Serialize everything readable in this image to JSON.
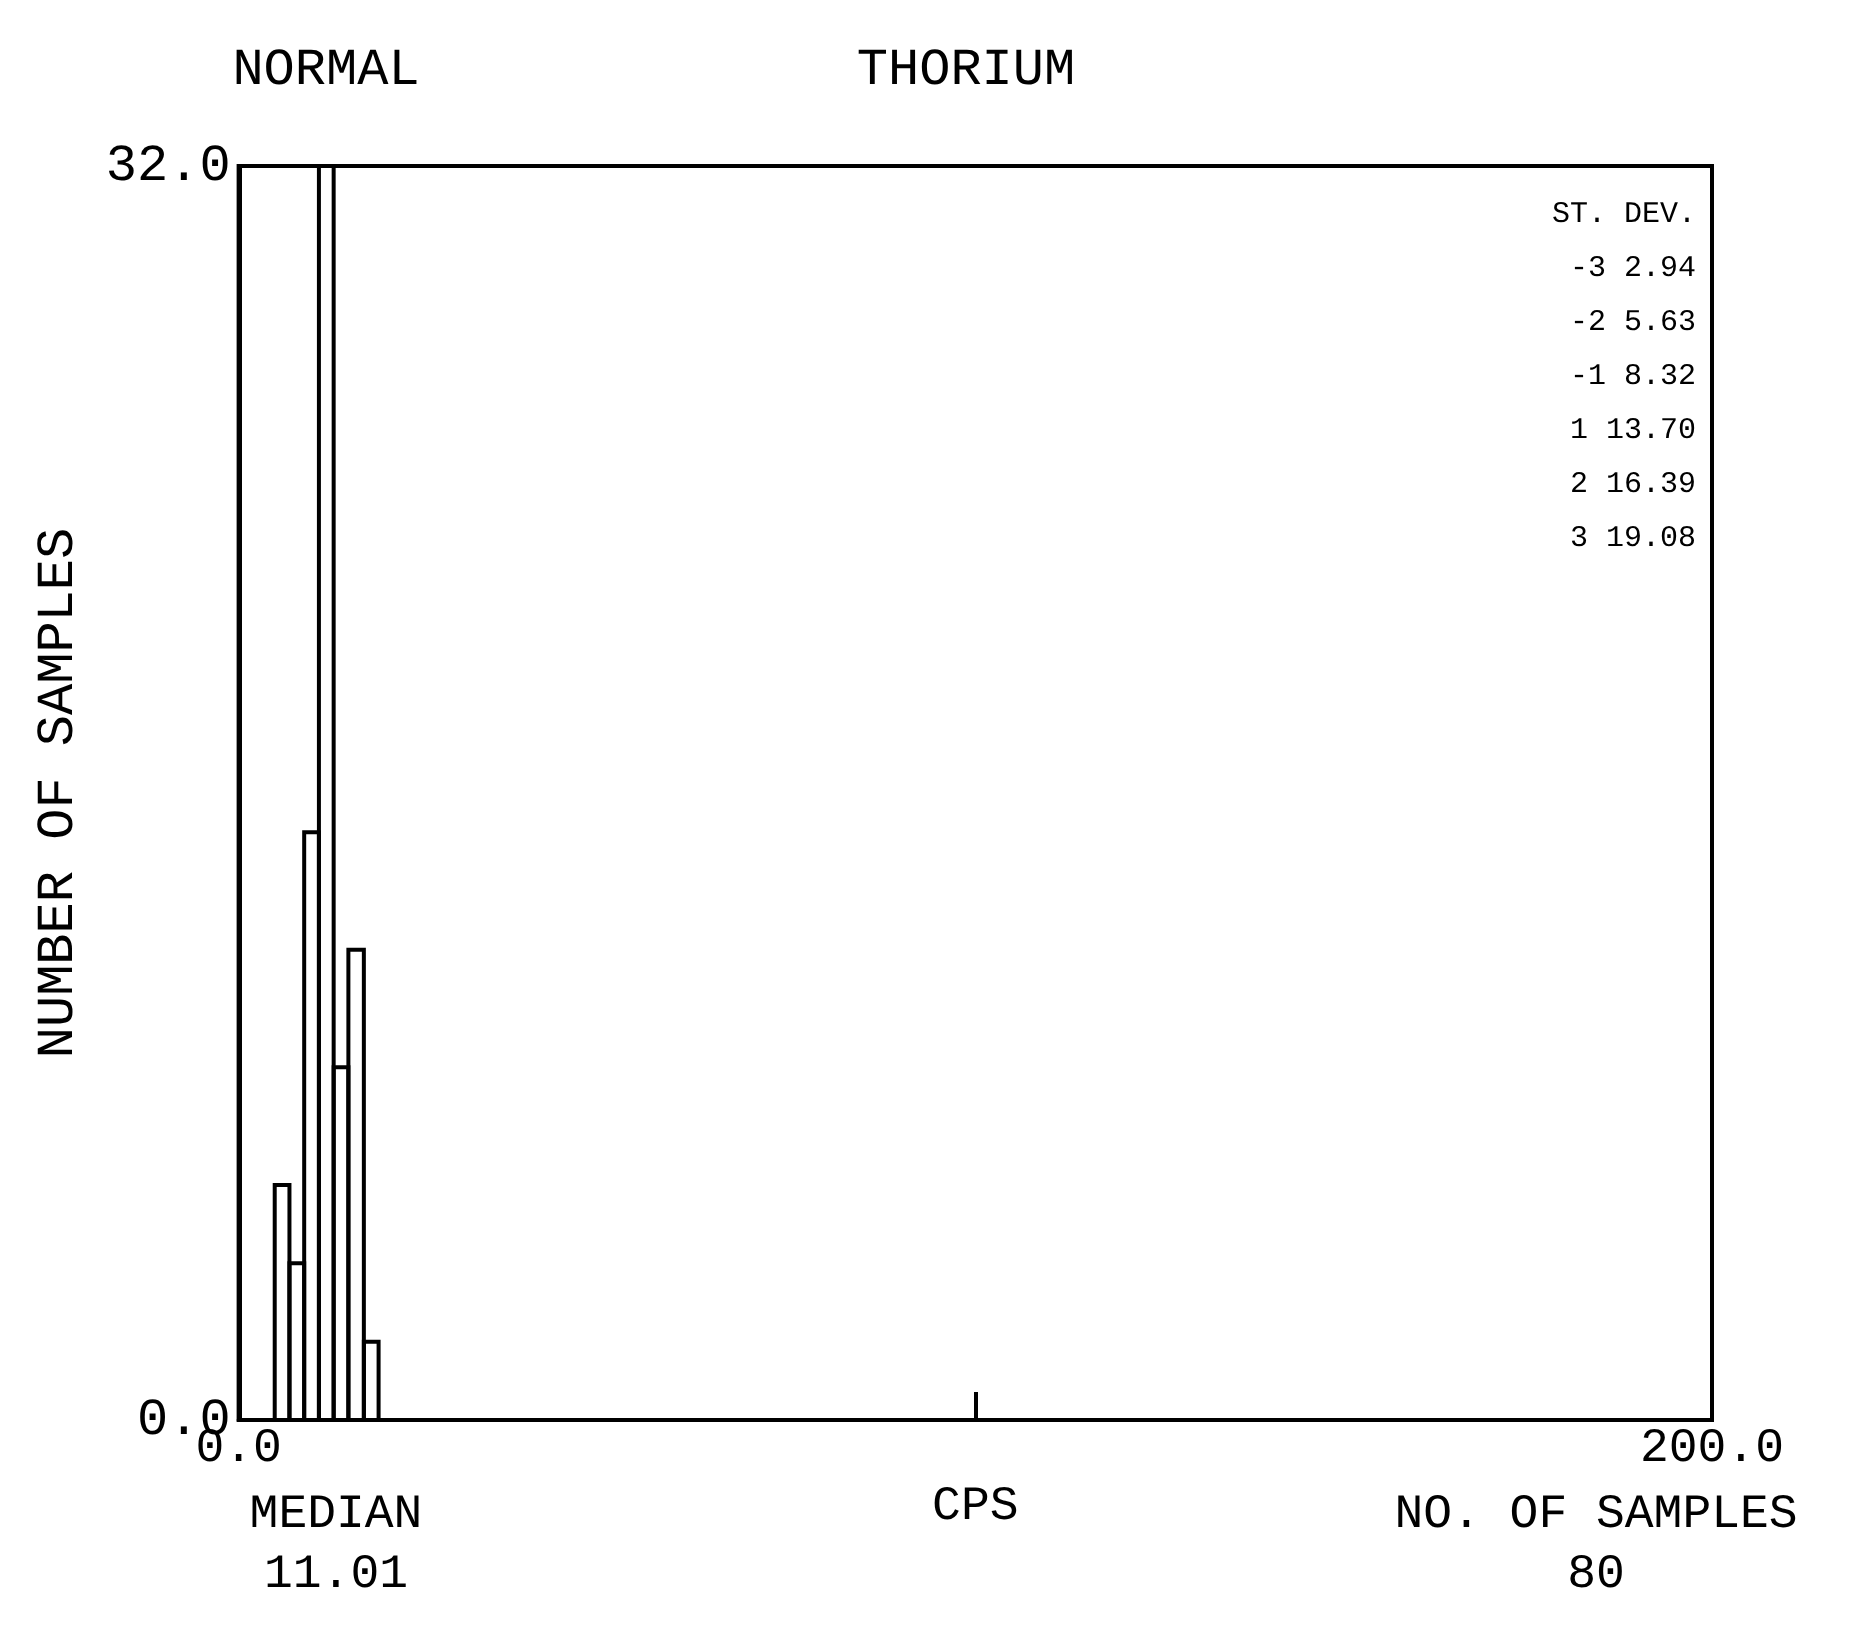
{
  "chart_data": {
    "type": "histogram",
    "title": "THORIUM",
    "subtitle": "NORMAL",
    "xlabel": "CPS",
    "ylabel": "NUMBER OF SAMPLES",
    "bins": [
      4.9,
      6.9,
      8.9,
      10.9,
      12.9,
      14.9,
      17.0,
      19.0
    ],
    "values": [
      6,
      4,
      15,
      32,
      9,
      12,
      2
    ],
    "color": "#000000",
    "xlim": [
      0,
      200
    ],
    "xticks": [
      {
        "value": 0,
        "label": "0.0"
      },
      {
        "value": 100,
        "label": null
      },
      {
        "value": 200,
        "label": "200.0"
      }
    ],
    "ylim": [
      0,
      32
    ],
    "yticks": [
      {
        "value": 0,
        "label": "0.0"
      },
      {
        "value": 32,
        "label": "32.0"
      }
    ],
    "annotations": [
      "ST. DEV.",
      "-3 2.94",
      "-2 5.63",
      "-1 8.32",
      "1 13.70",
      "2 16.39",
      "3 19.08",
      "MEDIAN",
      "11.01",
      "NO. OF SAMPLES",
      "80"
    ]
  }
}
